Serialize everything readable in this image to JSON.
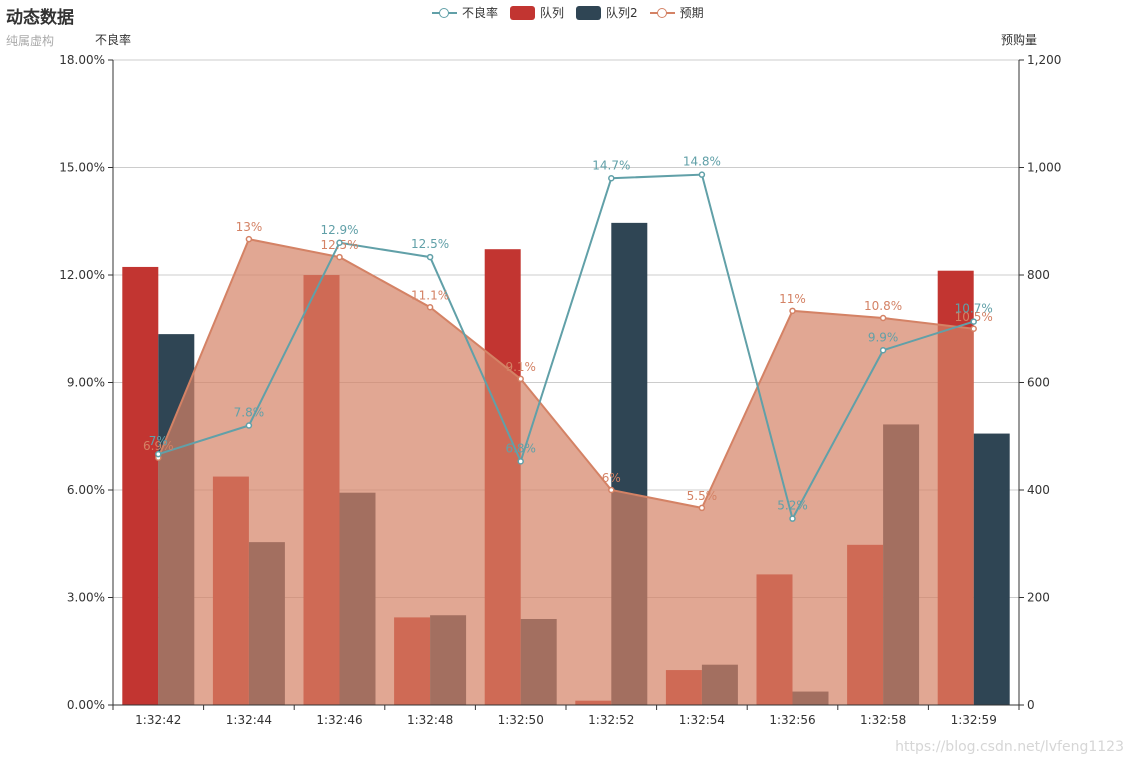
{
  "title": "动态数据",
  "subtitle": "纯属虚构",
  "watermark": "https://blog.csdn.net/lvfeng1123",
  "colors": {
    "line_rate": "#61a0a8",
    "bar1": "#c23531",
    "bar2": "#2f4554",
    "area": "#d48265",
    "grid": "#cccccc",
    "axis": "#333333",
    "text": "#333333"
  },
  "legend": [
    {
      "name": "不良率",
      "type": "line",
      "color": "#61a0a8"
    },
    {
      "name": "队列",
      "type": "bar",
      "color": "#c23531"
    },
    {
      "name": "队列2",
      "type": "bar",
      "color": "#2f4554"
    },
    {
      "name": "预期",
      "type": "line",
      "color": "#d48265"
    }
  ],
  "chart_data": {
    "type": "bar",
    "categories": [
      "1:32:42",
      "1:32:44",
      "1:32:46",
      "1:32:48",
      "1:32:50",
      "1:32:52",
      "1:32:54",
      "1:32:56",
      "1:32:58",
      "1:32:59"
    ],
    "y_left": {
      "name": "不良率",
      "min": 0,
      "max": 18,
      "interval": 3,
      "tick_labels": [
        "0.00%",
        "3.00%",
        "6.00%",
        "9.00%",
        "12.00%",
        "15.00%",
        "18.00%"
      ]
    },
    "y_right": {
      "name": "预购量",
      "min": 0,
      "max": 1200,
      "interval": 200,
      "tick_labels": [
        "0",
        "200",
        "400",
        "600",
        "800",
        "1,000",
        "1,200"
      ]
    },
    "series": [
      {
        "name": "队列",
        "type": "bar",
        "axis": "right",
        "values": [
          815,
          425,
          800,
          163,
          848,
          8,
          65,
          243,
          298,
          808
        ]
      },
      {
        "name": "队列2",
        "type": "bar",
        "axis": "right",
        "values": [
          690,
          303,
          395,
          167,
          160,
          897,
          75,
          25,
          522,
          505
        ]
      },
      {
        "name": "不良率",
        "type": "line",
        "axis": "left",
        "values": [
          7.0,
          7.8,
          12.9,
          12.5,
          6.8,
          14.7,
          14.8,
          5.2,
          9.9,
          10.7
        ],
        "labels": [
          "7%",
          "7.8%",
          "12.9%",
          "12.5%",
          "6.8%",
          "14.7%",
          "14.8%",
          "5.2%",
          "9.9%",
          "10.7%"
        ]
      },
      {
        "name": "预期",
        "type": "area",
        "axis": "left",
        "values": [
          6.9,
          13.0,
          12.5,
          11.1,
          9.1,
          6.0,
          5.5,
          11.0,
          10.8,
          10.5
        ],
        "labels": [
          "6.9%",
          "13%",
          "12.5%",
          "11.1%",
          "9.1%",
          "6%",
          "5.5%",
          "11%",
          "10.8%",
          "10.5%"
        ]
      }
    ]
  }
}
